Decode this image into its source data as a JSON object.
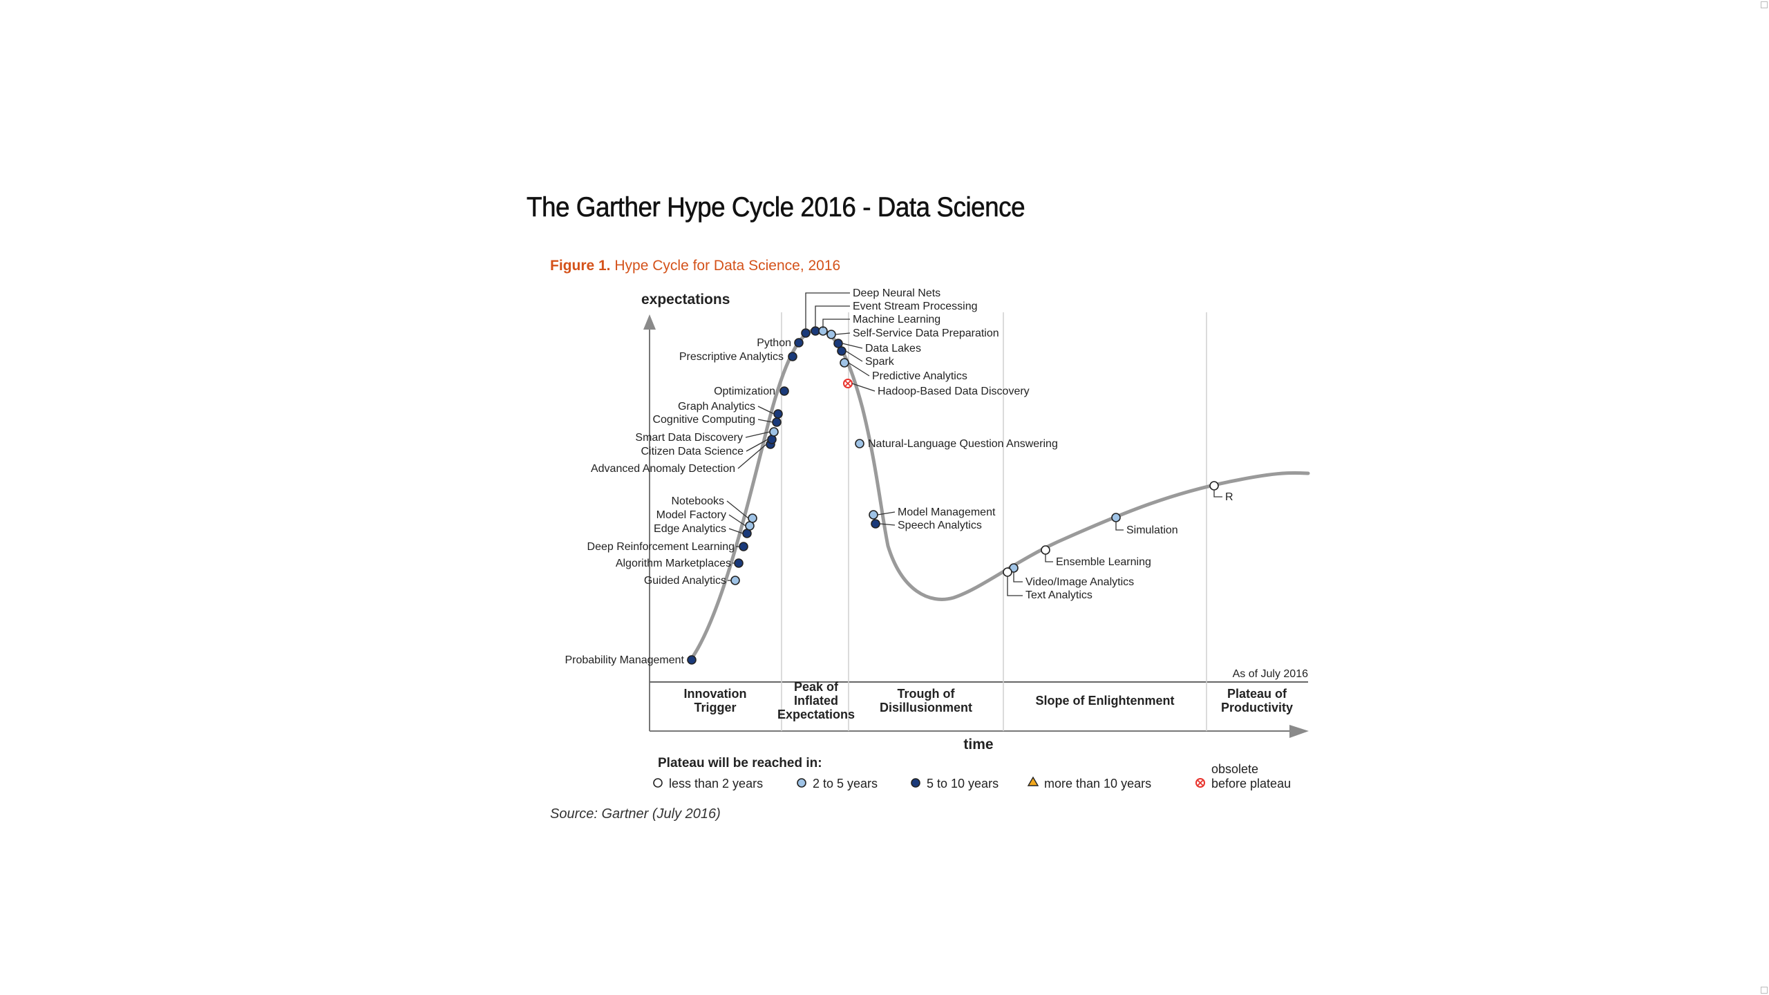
{
  "page": {
    "title": "The Garther Hype Cycle 2016 - Data Science",
    "figure_label": "Figure 1.",
    "figure_title": "Hype Cycle for Data Science, 2016",
    "source": "Source: Gartner (July 2016)"
  },
  "chart_data": {
    "type": "hype-cycle",
    "ylabel": "expectations",
    "xlabel": "time",
    "as_of": "As of July 2016",
    "phases": [
      [
        "Innovation",
        "Trigger"
      ],
      [
        "Peak of",
        "Inflated",
        "Expectations"
      ],
      [
        "Trough of",
        "Disillusionment"
      ],
      [
        "Slope of Enlightenment"
      ],
      [
        "Plateau of",
        "Productivity"
      ]
    ],
    "legend": {
      "title": "Plateau will be reached in:",
      "items": [
        {
          "key": "lt2",
          "label": "less than 2 years"
        },
        {
          "key": "2to5",
          "label": "2 to 5 years"
        },
        {
          "key": "5to10",
          "label": "5 to 10 years"
        },
        {
          "key": "gt10",
          "label": "more than 10 years"
        },
        {
          "key": "obsolete",
          "label": [
            "obsolete",
            "before plateau"
          ]
        }
      ]
    },
    "category_colors": {
      "lt2": "#ffffff",
      "2to5": "#9fc3e6",
      "5to10": "#1a3a7a",
      "gt10": "#f2a81d",
      "obsolete": "#e8322c"
    },
    "curve_color": "#9a9a9a",
    "technologies": [
      {
        "name": "Probability Management",
        "phase": "Innovation Trigger",
        "category": "5to10"
      },
      {
        "name": "Guided Analytics",
        "phase": "Innovation Trigger",
        "category": "2to5"
      },
      {
        "name": "Algorithm Marketplaces",
        "phase": "Innovation Trigger",
        "category": "5to10"
      },
      {
        "name": "Deep Reinforcement Learning",
        "phase": "Innovation Trigger",
        "category": "5to10"
      },
      {
        "name": "Edge Analytics",
        "phase": "Innovation Trigger",
        "category": "5to10"
      },
      {
        "name": "Model Factory",
        "phase": "Innovation Trigger",
        "category": "2to5"
      },
      {
        "name": "Notebooks",
        "phase": "Innovation Trigger",
        "category": "2to5"
      },
      {
        "name": "Advanced Anomaly Detection",
        "phase": "Innovation Trigger",
        "category": "5to10"
      },
      {
        "name": "Citizen Data Science",
        "phase": "Innovation Trigger",
        "category": "5to10"
      },
      {
        "name": "Smart Data Discovery",
        "phase": "Innovation Trigger",
        "category": "2to5"
      },
      {
        "name": "Cognitive Computing",
        "phase": "Innovation Trigger",
        "category": "5to10"
      },
      {
        "name": "Graph Analytics",
        "phase": "Innovation Trigger",
        "category": "5to10"
      },
      {
        "name": "Optimization",
        "phase": "Innovation Trigger",
        "category": "5to10"
      },
      {
        "name": "Prescriptive Analytics",
        "phase": "Peak of Inflated Expectations",
        "category": "5to10"
      },
      {
        "name": "Python",
        "phase": "Peak of Inflated Expectations",
        "category": "5to10"
      },
      {
        "name": "Deep Neural Nets",
        "phase": "Peak of Inflated Expectations",
        "category": "5to10"
      },
      {
        "name": "Event Stream Processing",
        "phase": "Peak of Inflated Expectations",
        "category": "5to10"
      },
      {
        "name": "Machine Learning",
        "phase": "Peak of Inflated Expectations",
        "category": "2to5"
      },
      {
        "name": "Self-Service Data Preparation",
        "phase": "Peak of Inflated Expectations",
        "category": "2to5"
      },
      {
        "name": "Data Lakes",
        "phase": "Peak of Inflated Expectations",
        "category": "5to10"
      },
      {
        "name": "Spark",
        "phase": "Peak of Inflated Expectations",
        "category": "5to10"
      },
      {
        "name": "Predictive Analytics",
        "phase": "Peak of Inflated Expectations",
        "category": "2to5"
      },
      {
        "name": "Hadoop-Based Data Discovery",
        "phase": "Trough of Disillusionment",
        "category": "obsolete"
      },
      {
        "name": "Natural-Language Question Answering",
        "phase": "Trough of Disillusionment",
        "category": "2to5"
      },
      {
        "name": "Model Management",
        "phase": "Trough of Disillusionment",
        "category": "2to5"
      },
      {
        "name": "Speech Analytics",
        "phase": "Trough of Disillusionment",
        "category": "5to10"
      },
      {
        "name": "Video/Image Analytics",
        "phase": "Slope of Enlightenment",
        "category": "2to5"
      },
      {
        "name": "Text Analytics",
        "phase": "Slope of Enlightenment",
        "category": "lt2"
      },
      {
        "name": "Ensemble Learning",
        "phase": "Slope of Enlightenment",
        "category": "lt2"
      },
      {
        "name": "Simulation",
        "phase": "Slope of Enlightenment",
        "category": "2to5"
      },
      {
        "name": "R",
        "phase": "Slope of Enlightenment",
        "category": "lt2"
      }
    ]
  }
}
